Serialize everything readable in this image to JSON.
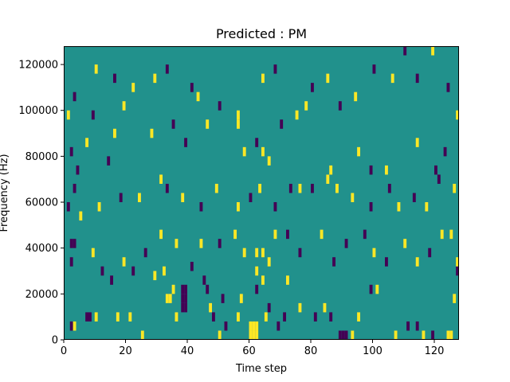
{
  "chart_data": {
    "type": "heatmap",
    "title": "Predicted : PM",
    "xlabel": "Time step",
    "ylabel": "Frequency (Hz)",
    "xlim": [
      0,
      128
    ],
    "ylim": [
      0,
      128000
    ],
    "grid": false,
    "x_ticks": [
      {
        "value": 0,
        "label": "0"
      },
      {
        "value": 20,
        "label": "20"
      },
      {
        "value": 40,
        "label": "40"
      },
      {
        "value": 60,
        "label": "60"
      },
      {
        "value": 80,
        "label": "80"
      },
      {
        "value": 100,
        "label": "100"
      },
      {
        "value": 120,
        "label": "120"
      }
    ],
    "y_ticks": [
      {
        "value": 0,
        "label": "0"
      },
      {
        "value": 20000,
        "label": "20000"
      },
      {
        "value": 40000,
        "label": "40000"
      },
      {
        "value": 60000,
        "label": "60000"
      },
      {
        "value": 80000,
        "label": "80000"
      },
      {
        "value": 100000,
        "label": "100000"
      },
      {
        "value": 120000,
        "label": "120000"
      }
    ],
    "colormap": {
      "low": "#440154",
      "mid": "#21918c",
      "high": "#fde725"
    },
    "background_value": "mid",
    "cell_height_hz": 4000,
    "cells": [
      {
        "t": 2,
        "f": 6000,
        "v": "low"
      },
      {
        "t": 3,
        "f": 6000,
        "v": "high"
      },
      {
        "t": 7,
        "f": 10000,
        "v": "low"
      },
      {
        "t": 8,
        "f": 10000,
        "v": "low"
      },
      {
        "t": 10,
        "f": 10000,
        "v": "high"
      },
      {
        "t": 17,
        "f": 10000,
        "v": "high"
      },
      {
        "t": 21,
        "f": 10000,
        "v": "high"
      },
      {
        "t": 25,
        "f": 2000,
        "v": "high"
      },
      {
        "t": 36,
        "f": 10000,
        "v": "high"
      },
      {
        "t": 38,
        "f": 14000,
        "v": "low"
      },
      {
        "t": 39,
        "f": 14000,
        "v": "low"
      },
      {
        "t": 33,
        "f": 18000,
        "v": "high"
      },
      {
        "t": 34,
        "f": 18000,
        "v": "high"
      },
      {
        "t": 38,
        "f": 18000,
        "v": "low"
      },
      {
        "t": 39,
        "f": 18000,
        "v": "low"
      },
      {
        "t": 35,
        "f": 22000,
        "v": "high"
      },
      {
        "t": 38,
        "f": 22000,
        "v": "low"
      },
      {
        "t": 39,
        "f": 22000,
        "v": "low"
      },
      {
        "t": 29,
        "f": 28000,
        "v": "high"
      },
      {
        "t": 32,
        "f": 30000,
        "v": "high"
      },
      {
        "t": 41,
        "f": 32000,
        "v": "low"
      },
      {
        "t": 45,
        "f": 26000,
        "v": "low"
      },
      {
        "t": 46,
        "f": 22000,
        "v": "low"
      },
      {
        "t": 47,
        "f": 14000,
        "v": "high"
      },
      {
        "t": 48,
        "f": 10000,
        "v": "low"
      },
      {
        "t": 51,
        "f": 18000,
        "v": "low"
      },
      {
        "t": 50,
        "f": 2000,
        "v": "high"
      },
      {
        "t": 52,
        "f": 6000,
        "v": "low"
      },
      {
        "t": 57,
        "f": 18000,
        "v": "high"
      },
      {
        "t": 56,
        "f": 10000,
        "v": "high"
      },
      {
        "t": 60,
        "f": 2000,
        "v": "high"
      },
      {
        "t": 61,
        "f": 2000,
        "v": "high"
      },
      {
        "t": 62,
        "f": 2000,
        "v": "high"
      },
      {
        "t": 60,
        "f": 6000,
        "v": "high"
      },
      {
        "t": 61,
        "f": 6000,
        "v": "high"
      },
      {
        "t": 62,
        "f": 6000,
        "v": "high"
      },
      {
        "t": 65,
        "f": 10000,
        "v": "high"
      },
      {
        "t": 66,
        "f": 14000,
        "v": "low"
      },
      {
        "t": 62,
        "f": 22000,
        "v": "low"
      },
      {
        "t": 64,
        "f": 26000,
        "v": "high"
      },
      {
        "t": 62,
        "f": 30000,
        "v": "high"
      },
      {
        "t": 62,
        "f": 38000,
        "v": "high"
      },
      {
        "t": 66,
        "f": 34000,
        "v": "high"
      },
      {
        "t": 69,
        "f": 6000,
        "v": "low"
      },
      {
        "t": 71,
        "f": 10000,
        "v": "low"
      },
      {
        "t": 72,
        "f": 26000,
        "v": "high"
      },
      {
        "t": 76,
        "f": 14000,
        "v": "high"
      },
      {
        "t": 81,
        "f": 10000,
        "v": "low"
      },
      {
        "t": 84,
        "f": 14000,
        "v": "high"
      },
      {
        "t": 86,
        "f": 10000,
        "v": "low"
      },
      {
        "t": 89,
        "f": 2000,
        "v": "low"
      },
      {
        "t": 90,
        "f": 2000,
        "v": "low"
      },
      {
        "t": 91,
        "f": 2000,
        "v": "low"
      },
      {
        "t": 93,
        "f": 2000,
        "v": "high"
      },
      {
        "t": 95,
        "f": 10000,
        "v": "high"
      },
      {
        "t": 99,
        "f": 22000,
        "v": "low"
      },
      {
        "t": 101,
        "f": 22000,
        "v": "high"
      },
      {
        "t": 107,
        "f": 2000,
        "v": "high"
      },
      {
        "t": 111,
        "f": 6000,
        "v": "low"
      },
      {
        "t": 114,
        "f": 6000,
        "v": "low"
      },
      {
        "t": 116,
        "f": 2000,
        "v": "high"
      },
      {
        "t": 119,
        "f": 2000,
        "v": "low"
      },
      {
        "t": 124,
        "f": 2000,
        "v": "high"
      },
      {
        "t": 125,
        "f": 2000,
        "v": "high"
      },
      {
        "t": 126,
        "f": 18000,
        "v": "high"
      },
      {
        "t": 127,
        "f": 30000,
        "v": "low"
      },
      {
        "t": 127,
        "f": 34000,
        "v": "high"
      },
      {
        "t": 2,
        "f": 34000,
        "v": "low"
      },
      {
        "t": 2,
        "f": 42000,
        "v": "low"
      },
      {
        "t": 3,
        "f": 42000,
        "v": "low"
      },
      {
        "t": 9,
        "f": 38000,
        "v": "high"
      },
      {
        "t": 12,
        "f": 30000,
        "v": "low"
      },
      {
        "t": 15,
        "f": 26000,
        "v": "low"
      },
      {
        "t": 19,
        "f": 34000,
        "v": "high"
      },
      {
        "t": 22,
        "f": 30000,
        "v": "low"
      },
      {
        "t": 26,
        "f": 38000,
        "v": "low"
      },
      {
        "t": 31,
        "f": 46000,
        "v": "high"
      },
      {
        "t": 36,
        "f": 42000,
        "v": "high"
      },
      {
        "t": 44,
        "f": 42000,
        "v": "high"
      },
      {
        "t": 50,
        "f": 42000,
        "v": "low"
      },
      {
        "t": 55,
        "f": 46000,
        "v": "high"
      },
      {
        "t": 58,
        "f": 38000,
        "v": "high"
      },
      {
        "t": 64,
        "f": 38000,
        "v": "high"
      },
      {
        "t": 68,
        "f": 46000,
        "v": "high"
      },
      {
        "t": 72,
        "f": 46000,
        "v": "low"
      },
      {
        "t": 76,
        "f": 38000,
        "v": "low"
      },
      {
        "t": 83,
        "f": 46000,
        "v": "high"
      },
      {
        "t": 87,
        "f": 34000,
        "v": "low"
      },
      {
        "t": 91,
        "f": 42000,
        "v": "low"
      },
      {
        "t": 97,
        "f": 46000,
        "v": "low"
      },
      {
        "t": 100,
        "f": 38000,
        "v": "high"
      },
      {
        "t": 104,
        "f": 34000,
        "v": "low"
      },
      {
        "t": 110,
        "f": 42000,
        "v": "high"
      },
      {
        "t": 114,
        "f": 34000,
        "v": "high"
      },
      {
        "t": 118,
        "f": 38000,
        "v": "low"
      },
      {
        "t": 122,
        "f": 46000,
        "v": "high"
      },
      {
        "t": 125,
        "f": 46000,
        "v": "high"
      },
      {
        "t": 1,
        "f": 58000,
        "v": "low"
      },
      {
        "t": 3,
        "f": 66000,
        "v": "low"
      },
      {
        "t": 5,
        "f": 54000,
        "v": "high"
      },
      {
        "t": 11,
        "f": 58000,
        "v": "high"
      },
      {
        "t": 18,
        "f": 62000,
        "v": "low"
      },
      {
        "t": 24,
        "f": 62000,
        "v": "high"
      },
      {
        "t": 31,
        "f": 70000,
        "v": "high"
      },
      {
        "t": 33,
        "f": 66000,
        "v": "low"
      },
      {
        "t": 38,
        "f": 62000,
        "v": "high"
      },
      {
        "t": 44,
        "f": 58000,
        "v": "low"
      },
      {
        "t": 49,
        "f": 66000,
        "v": "high"
      },
      {
        "t": 56,
        "f": 58000,
        "v": "high"
      },
      {
        "t": 60,
        "f": 62000,
        "v": "low"
      },
      {
        "t": 63,
        "f": 66000,
        "v": "high"
      },
      {
        "t": 68,
        "f": 58000,
        "v": "low"
      },
      {
        "t": 73,
        "f": 66000,
        "v": "low"
      },
      {
        "t": 76,
        "f": 66000,
        "v": "high"
      },
      {
        "t": 80,
        "f": 66000,
        "v": "low"
      },
      {
        "t": 85,
        "f": 70000,
        "v": "high"
      },
      {
        "t": 88,
        "f": 66000,
        "v": "high"
      },
      {
        "t": 93,
        "f": 62000,
        "v": "high"
      },
      {
        "t": 99,
        "f": 58000,
        "v": "low"
      },
      {
        "t": 105,
        "f": 66000,
        "v": "low"
      },
      {
        "t": 108,
        "f": 58000,
        "v": "high"
      },
      {
        "t": 113,
        "f": 62000,
        "v": "low"
      },
      {
        "t": 117,
        "f": 58000,
        "v": "high"
      },
      {
        "t": 121,
        "f": 70000,
        "v": "low"
      },
      {
        "t": 126,
        "f": 66000,
        "v": "high"
      },
      {
        "t": 2,
        "f": 82000,
        "v": "low"
      },
      {
        "t": 4,
        "f": 74000,
        "v": "low"
      },
      {
        "t": 7,
        "f": 86000,
        "v": "high"
      },
      {
        "t": 14,
        "f": 78000,
        "v": "low"
      },
      {
        "t": 16,
        "f": 90000,
        "v": "high"
      },
      {
        "t": 28,
        "f": 90000,
        "v": "high"
      },
      {
        "t": 35,
        "f": 94000,
        "v": "low"
      },
      {
        "t": 39,
        "f": 86000,
        "v": "low"
      },
      {
        "t": 46,
        "f": 94000,
        "v": "high"
      },
      {
        "t": 56,
        "f": 94000,
        "v": "high"
      },
      {
        "t": 58,
        "f": 82000,
        "v": "high"
      },
      {
        "t": 62,
        "f": 86000,
        "v": "low"
      },
      {
        "t": 64,
        "f": 82000,
        "v": "high"
      },
      {
        "t": 66,
        "f": 78000,
        "v": "high"
      },
      {
        "t": 70,
        "f": 94000,
        "v": "low"
      },
      {
        "t": 75,
        "f": 98000,
        "v": "high"
      },
      {
        "t": 86,
        "f": 74000,
        "v": "high"
      },
      {
        "t": 95,
        "f": 82000,
        "v": "high"
      },
      {
        "t": 99,
        "f": 74000,
        "v": "low"
      },
      {
        "t": 104,
        "f": 74000,
        "v": "high"
      },
      {
        "t": 114,
        "f": 86000,
        "v": "high"
      },
      {
        "t": 120,
        "f": 74000,
        "v": "low"
      },
      {
        "t": 123,
        "f": 82000,
        "v": "low"
      },
      {
        "t": 1,
        "f": 98000,
        "v": "high"
      },
      {
        "t": 3,
        "f": 106000,
        "v": "low"
      },
      {
        "t": 9,
        "f": 98000,
        "v": "low"
      },
      {
        "t": 10,
        "f": 118000,
        "v": "high"
      },
      {
        "t": 16,
        "f": 114000,
        "v": "low"
      },
      {
        "t": 19,
        "f": 102000,
        "v": "high"
      },
      {
        "t": 22,
        "f": 110000,
        "v": "high"
      },
      {
        "t": 29,
        "f": 114000,
        "v": "high"
      },
      {
        "t": 33,
        "f": 118000,
        "v": "low"
      },
      {
        "t": 41,
        "f": 110000,
        "v": "low"
      },
      {
        "t": 43,
        "f": 106000,
        "v": "high"
      },
      {
        "t": 50,
        "f": 102000,
        "v": "low"
      },
      {
        "t": 56,
        "f": 98000,
        "v": "high"
      },
      {
        "t": 64,
        "f": 114000,
        "v": "high"
      },
      {
        "t": 68,
        "f": 118000,
        "v": "low"
      },
      {
        "t": 78,
        "f": 102000,
        "v": "high"
      },
      {
        "t": 80,
        "f": 110000,
        "v": "low"
      },
      {
        "t": 85,
        "f": 114000,
        "v": "high"
      },
      {
        "t": 89,
        "f": 102000,
        "v": "low"
      },
      {
        "t": 94,
        "f": 106000,
        "v": "high"
      },
      {
        "t": 100,
        "f": 118000,
        "v": "low"
      },
      {
        "t": 106,
        "f": 114000,
        "v": "high"
      },
      {
        "t": 110,
        "f": 126000,
        "v": "low"
      },
      {
        "t": 114,
        "f": 114000,
        "v": "low"
      },
      {
        "t": 119,
        "f": 126000,
        "v": "high"
      },
      {
        "t": 124,
        "f": 110000,
        "v": "low"
      },
      {
        "t": 127,
        "f": 98000,
        "v": "high"
      }
    ]
  }
}
